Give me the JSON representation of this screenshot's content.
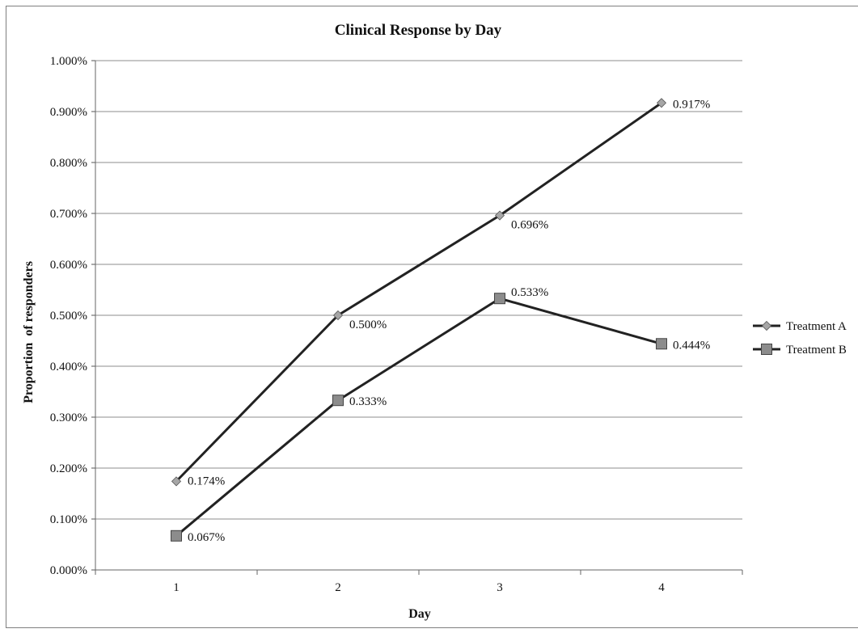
{
  "chart_data": {
    "type": "line",
    "title": "Clinical Response by Day",
    "xlabel": "Day",
    "ylabel": "Proportion  of responders",
    "categories": [
      "1",
      "2",
      "3",
      "4"
    ],
    "ylim": [
      0,
      1.0
    ],
    "y_ticks": [
      "0.000%",
      "0.100%",
      "0.200%",
      "0.300%",
      "0.400%",
      "0.500%",
      "0.600%",
      "0.700%",
      "0.800%",
      "0.900%",
      "1.000%"
    ],
    "grid": true,
    "legend_position": "right",
    "series": [
      {
        "name": "Treatment A",
        "marker": "diamond",
        "color": "#222222",
        "marker_color": "#a6a6a6",
        "values": [
          0.174,
          0.5,
          0.696,
          0.917
        ],
        "labels": [
          "0.174%",
          "0.500%",
          "0.696%",
          "0.917%"
        ]
      },
      {
        "name": "Treatment B",
        "marker": "square",
        "color": "#222222",
        "marker_color": "#8c8c8c",
        "values": [
          0.067,
          0.333,
          0.533,
          0.444
        ],
        "labels": [
          "0.067%",
          "0.333%",
          "0.533%",
          "0.444%"
        ]
      }
    ]
  }
}
